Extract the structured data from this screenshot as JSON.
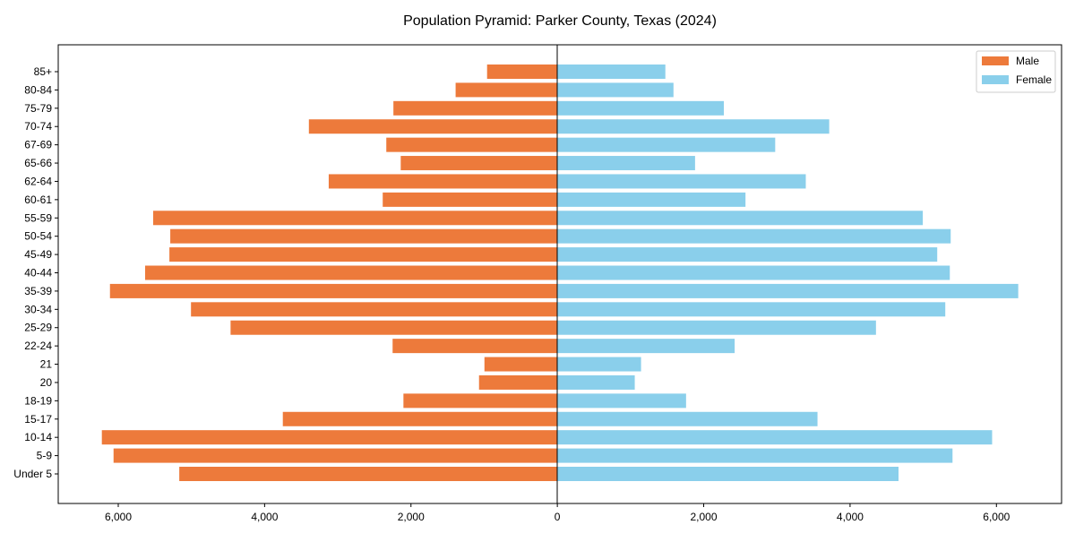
{
  "chart_data": {
    "type": "bar",
    "orientation": "horizontal-pyramid",
    "title": "Population Pyramid: Parker County, Texas (2024)",
    "xlabel": "",
    "ylabel": "",
    "xlim": [
      -6820,
      6890
    ],
    "xticks": [
      -6000,
      -4000,
      -2000,
      0,
      2000,
      4000,
      6000
    ],
    "xtick_labels": [
      "6,000",
      "4,000",
      "2,000",
      "0",
      "2,000",
      "4,000",
      "6,000"
    ],
    "legend_position": "top-right",
    "categories": [
      "Under 5",
      "5-9",
      "10-14",
      "15-17",
      "18-19",
      "20",
      "21",
      "22-24",
      "25-29",
      "30-34",
      "35-39",
      "40-44",
      "45-49",
      "50-54",
      "55-59",
      "60-61",
      "62-64",
      "65-66",
      "67-69",
      "70-74",
      "75-79",
      "80-84",
      "85+"
    ],
    "series": [
      {
        "name": "Male",
        "color": "#ED7A3B",
        "values": [
          5166,
          6064,
          6224,
          3751,
          2103,
          1070,
          996,
          2251,
          4465,
          5006,
          6113,
          5633,
          5301,
          5289,
          5523,
          2386,
          3124,
          2140,
          2337,
          3395,
          2240,
          1390,
          960
        ]
      },
      {
        "name": "Female",
        "color": "#8ACFEB",
        "values": [
          4662,
          5400,
          5941,
          3555,
          1759,
          1058,
          1144,
          2423,
          4354,
          5301,
          6298,
          5363,
          5191,
          5375,
          4994,
          2571,
          3395,
          1882,
          2977,
          3715,
          2275,
          1587,
          1476
        ]
      }
    ]
  }
}
